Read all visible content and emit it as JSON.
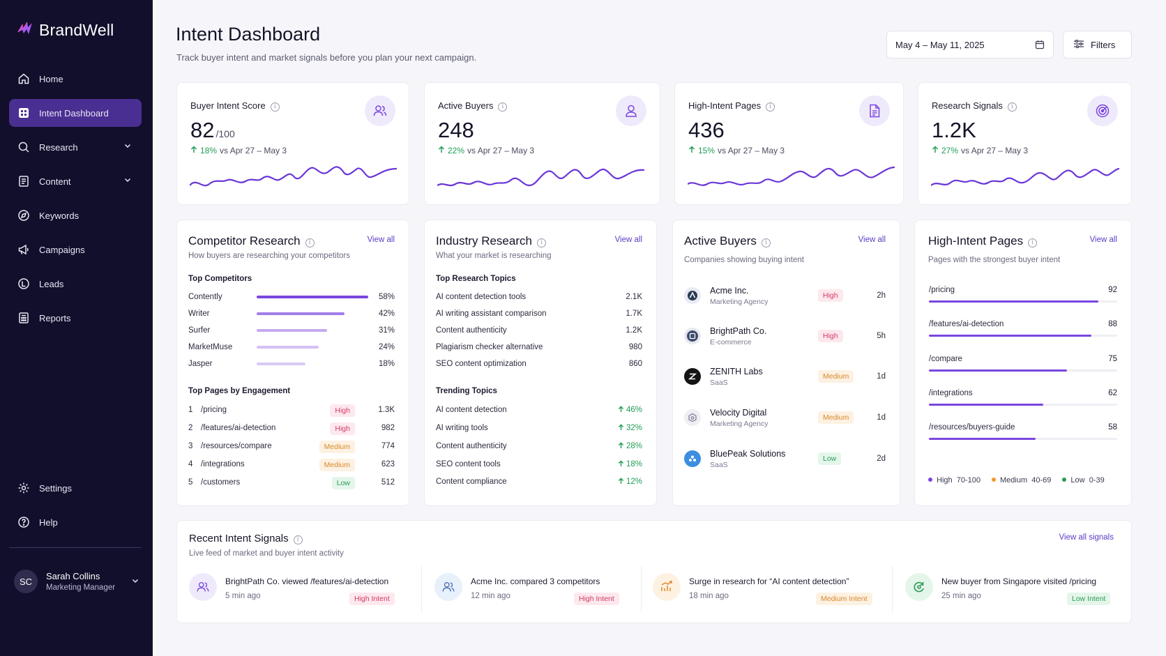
{
  "app": {
    "name": "BrandWell"
  },
  "sidebar": {
    "items": [
      {
        "label": "Home",
        "icon": "home-icon"
      },
      {
        "label": "Intent Dashboard",
        "icon": "dashboard-icon",
        "active": true
      },
      {
        "label": "Research",
        "icon": "search-icon",
        "expandable": true
      },
      {
        "label": "Content",
        "icon": "document-icon",
        "expandable": true
      },
      {
        "label": "Keywords",
        "icon": "compass-icon"
      },
      {
        "label": "Campaigns",
        "icon": "megaphone-icon"
      },
      {
        "label": "Leads",
        "icon": "leads-icon"
      },
      {
        "label": "Reports",
        "icon": "calculator-icon"
      }
    ],
    "bottom_items": [
      {
        "label": "Settings",
        "icon": "gear-icon"
      },
      {
        "label": "Help",
        "icon": "help-icon"
      }
    ],
    "user": {
      "initials": "SC",
      "name": "Sarah Collins",
      "role": "Marketing Manager"
    }
  },
  "header": {
    "title": "Intent Dashboard",
    "subtitle": "Track buyer intent and market signals before you plan your next campaign.",
    "date_range": "May 4 – May 11, 2025",
    "filters_label": "Filters"
  },
  "kpis": [
    {
      "title": "Buyer Intent Score",
      "value": "82",
      "unit": "/100",
      "delta": "18%",
      "compare": "vs Apr 27 – May 3",
      "icon": "users-icon"
    },
    {
      "title": "Active Buyers",
      "value": "248",
      "unit": "",
      "delta": "22%",
      "compare": "vs Apr 27 – May 3",
      "icon": "user-icon"
    },
    {
      "title": "High-Intent Pages",
      "value": "436",
      "unit": "",
      "delta": "15%",
      "compare": "vs Apr 27 – May 3",
      "icon": "page-icon"
    },
    {
      "title": "Research Signals",
      "value": "1.2K",
      "unit": "",
      "delta": "27%",
      "compare": "vs Apr 27 – May 3",
      "icon": "radar-icon"
    }
  ],
  "competitor": {
    "title": "Competitor Research",
    "subtitle": "How buyers are researching your competitors",
    "view_all": "View all",
    "top_label": "Top Competitors",
    "competitors": [
      {
        "name": "Contently",
        "pct": "58%",
        "share": 0.58
      },
      {
        "name": "Writer",
        "pct": "42%",
        "share": 0.42
      },
      {
        "name": "Surfer",
        "pct": "31%",
        "share": 0.31
      },
      {
        "name": "MarketMuse",
        "pct": "24%",
        "share": 0.24
      },
      {
        "name": "Jasper",
        "pct": "18%",
        "share": 0.18
      }
    ],
    "pages_label": "Top Pages by Engagement",
    "pages": [
      {
        "rank": "1",
        "path": "/pricing",
        "intent": "High",
        "level": "high",
        "value": "1.3K"
      },
      {
        "rank": "2",
        "path": "/features/ai-detection",
        "intent": "High",
        "level": "high",
        "value": "982"
      },
      {
        "rank": "3",
        "path": "/resources/compare",
        "intent": "Medium",
        "level": "medium",
        "value": "774"
      },
      {
        "rank": "4",
        "path": "/integrations",
        "intent": "Medium",
        "level": "medium",
        "value": "623"
      },
      {
        "rank": "5",
        "path": "/customers",
        "intent": "Low",
        "level": "low",
        "value": "512"
      }
    ]
  },
  "industry": {
    "title": "Industry Research",
    "subtitle": "What your market is researching",
    "view_all": "View all",
    "topics_label": "Top Research Topics",
    "topics": [
      {
        "name": "AI content detection tools",
        "value": "2.1K"
      },
      {
        "name": "AI writing assistant comparison",
        "value": "1.7K"
      },
      {
        "name": "Content authenticity",
        "value": "1.2K"
      },
      {
        "name": "Plagiarism checker alternative",
        "value": "980"
      },
      {
        "name": "SEO content optimization",
        "value": "860"
      }
    ],
    "trending_label": "Trending Topics",
    "trending": [
      {
        "name": "AI content detection",
        "change": "46%"
      },
      {
        "name": "AI writing tools",
        "change": "32%"
      },
      {
        "name": "Content authenticity",
        "change": "28%"
      },
      {
        "name": "SEO content tools",
        "change": "18%"
      },
      {
        "name": "Content compliance",
        "change": "12%"
      }
    ]
  },
  "buyers": {
    "title": "Active Buyers",
    "subtitle": "Companies showing buying intent",
    "view_all": "View all",
    "list": [
      {
        "name": "Acme Inc.",
        "type": "Marketing Agency",
        "intent": "High",
        "level": "high",
        "time": "2h",
        "logo": "acme-logo-icon",
        "color": "#2b3a55"
      },
      {
        "name": "BrightPath Co.",
        "type": "E-commerce",
        "intent": "High",
        "level": "high",
        "time": "5h",
        "logo": "brightpath-logo-icon",
        "color": "#3d4a6b"
      },
      {
        "name": "ZENITH Labs",
        "type": "SaaS",
        "intent": "Medium",
        "level": "medium",
        "time": "1d",
        "logo": "zenith-logo-icon",
        "color": "#141414"
      },
      {
        "name": "Velocity Digital",
        "type": "Marketing Agency",
        "intent": "Medium",
        "level": "medium",
        "time": "1d",
        "logo": "velocity-logo-icon",
        "color": "#8a8aa0"
      },
      {
        "name": "BluePeak Solutions",
        "type": "SaaS",
        "intent": "Low",
        "level": "low",
        "time": "2d",
        "logo": "bluepeak-logo-icon",
        "color": "#3c8ee0"
      }
    ]
  },
  "high_pages": {
    "title": "High-Intent Pages",
    "subtitle": "Pages with the strongest buyer intent",
    "view_all": "View all",
    "pages": [
      {
        "path": "/pricing",
        "score": "92",
        "fill": 0.92
      },
      {
        "path": "/features/ai-detection",
        "score": "88",
        "fill": 0.88
      },
      {
        "path": "/compare",
        "score": "75",
        "fill": 0.75
      },
      {
        "path": "/integrations",
        "score": "62",
        "fill": 0.62
      },
      {
        "path": "/resources/buyers-guide",
        "score": "58",
        "fill": 0.58
      }
    ],
    "legend": [
      {
        "label": "High",
        "range": "70-100",
        "color": "#7a46e0"
      },
      {
        "label": "Medium",
        "range": "40-69",
        "color": "#f0982e"
      },
      {
        "label": "Low",
        "range": "0-39",
        "color": "#2a9a55"
      }
    ]
  },
  "signals": {
    "title": "Recent Intent Signals",
    "subtitle": "Live feed of market and buyer intent activity",
    "view_all": "View all signals",
    "items": [
      {
        "text": "BrightPath Co. viewed /features/ai-detection",
        "time": "5 min ago",
        "badge": "High Intent",
        "level": "high",
        "icon": "users-icon"
      },
      {
        "text": "Acme Inc. compared 3 competitors",
        "time": "12 min ago",
        "badge": "High Intent",
        "level": "high",
        "icon": "users-icon"
      },
      {
        "text": "Surge in research for “AI content detection”",
        "time": "18 min ago",
        "badge": "Medium Intent",
        "level": "medium",
        "icon": "trend-chart-icon"
      },
      {
        "text": "New buyer from Singapore visited /pricing",
        "time": "25 min ago",
        "badge": "Low Intent",
        "level": "low",
        "icon": "refresh-icon"
      }
    ]
  },
  "colors": {
    "accent": "#7a46e0",
    "sidebar": "#120f2c",
    "active_nav": "#4a2f92",
    "positive": "#1f9d55"
  }
}
